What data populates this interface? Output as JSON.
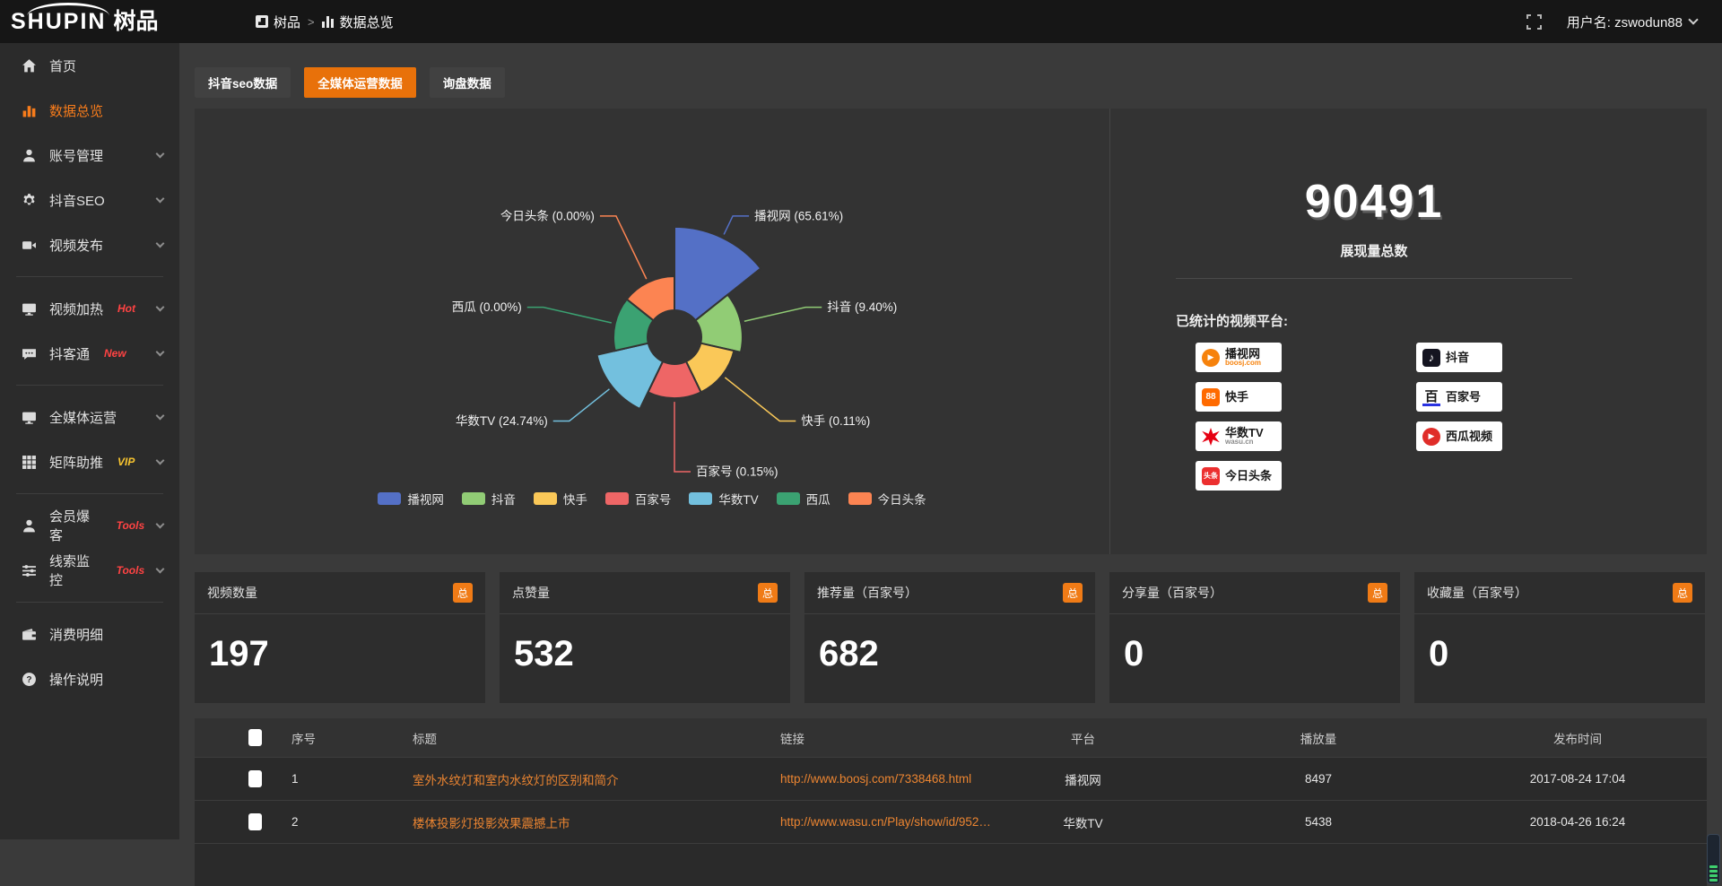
{
  "header": {
    "logo_en": "SHUPIN",
    "logo_cn": "树品",
    "breadcrumb": {
      "root": "树品",
      "separator": ">",
      "current": "数据总览"
    },
    "user_label": "用户名: zswodun88"
  },
  "sidebar": {
    "items": [
      {
        "label": "首页"
      },
      {
        "label": "数据总览",
        "active": true
      },
      {
        "label": "账号管理"
      },
      {
        "label": "抖音SEO"
      },
      {
        "label": "视频发布"
      },
      {
        "label": "视频加热",
        "badge": "Hot",
        "badge_color": "#ff4343"
      },
      {
        "label": "抖客通",
        "badge": "New",
        "badge_color": "#ff4343"
      },
      {
        "label": "全媒体运营"
      },
      {
        "label": "矩阵助推",
        "badge": "VIP",
        "badge_color": "#f9c52f"
      },
      {
        "label": "会员爆客",
        "badge": "Tools",
        "badge_color": "#ff4343"
      },
      {
        "label": "线索监控",
        "badge": "Tools",
        "badge_color": "#ff4343"
      },
      {
        "label": "消费明细"
      },
      {
        "label": "操作说明"
      }
    ]
  },
  "tabs": [
    {
      "label": "抖音seo数据",
      "active": false
    },
    {
      "label": "全媒体运营数据",
      "active": true
    },
    {
      "label": "询盘数据",
      "active": false
    }
  ],
  "chart_data": {
    "type": "pie",
    "variant": "nightingale-rose",
    "categories": [
      "播视网",
      "抖音",
      "快手",
      "百家号",
      "华数TV",
      "西瓜",
      "今日头条"
    ],
    "values": [
      65.61,
      9.4,
      0.11,
      0.15,
      24.74,
      0.0,
      0.0
    ],
    "unit": "%",
    "labels": [
      "播视网 (65.61%)",
      "抖音 (9.40%)",
      "快手 (0.11%)",
      "百家号 (0.15%)",
      "华数TV (24.74%)",
      "西瓜 (0.00%)",
      "今日头条 (0.00%)"
    ],
    "colors": [
      "#5470c6",
      "#91cc75",
      "#fac858",
      "#ee6666",
      "#73c0de",
      "#3ba272",
      "#fc8452"
    ],
    "legend_position": "bottom"
  },
  "summary": {
    "total_value": "90491",
    "total_label": "展现量总数",
    "platforms_label": "已统计的视频平台:",
    "platforms_left": [
      {
        "name": "播视网",
        "sub": "boosj.com"
      },
      {
        "name": "快手"
      },
      {
        "name": "华数TV",
        "sub": "wasu.cn"
      },
      {
        "name": "今日头条"
      }
    ],
    "platforms_right": [
      {
        "name": "抖音"
      },
      {
        "name": "百家号"
      },
      {
        "name": "西瓜视频"
      }
    ]
  },
  "stat_cards": [
    {
      "title": "视频数量",
      "badge": "总",
      "value": "197"
    },
    {
      "title": "点赞量",
      "badge": "总",
      "value": "532"
    },
    {
      "title": "推荐量（百家号）",
      "badge": "总",
      "value": "682"
    },
    {
      "title": "分享量（百家号）",
      "badge": "总",
      "value": "0"
    },
    {
      "title": "收藏量（百家号）",
      "badge": "总",
      "value": "0"
    }
  ],
  "table": {
    "headers": [
      "序号",
      "标题",
      "链接",
      "平台",
      "播放量",
      "发布时间"
    ],
    "rows": [
      {
        "index": "1",
        "title": "室外水纹灯和室内水纹灯的区别和简介",
        "link": "http://www.boosj.com/7338468.html",
        "platform": "播视网",
        "plays": "8497",
        "time": "2017-08-24 17:04"
      },
      {
        "index": "2",
        "title": "楼体投影灯投影效果震撼上市",
        "link": "http://www.wasu.cn/Play/show/id/952…",
        "platform": "华数TV",
        "plays": "5438",
        "time": "2018-04-26 16:24"
      }
    ]
  }
}
